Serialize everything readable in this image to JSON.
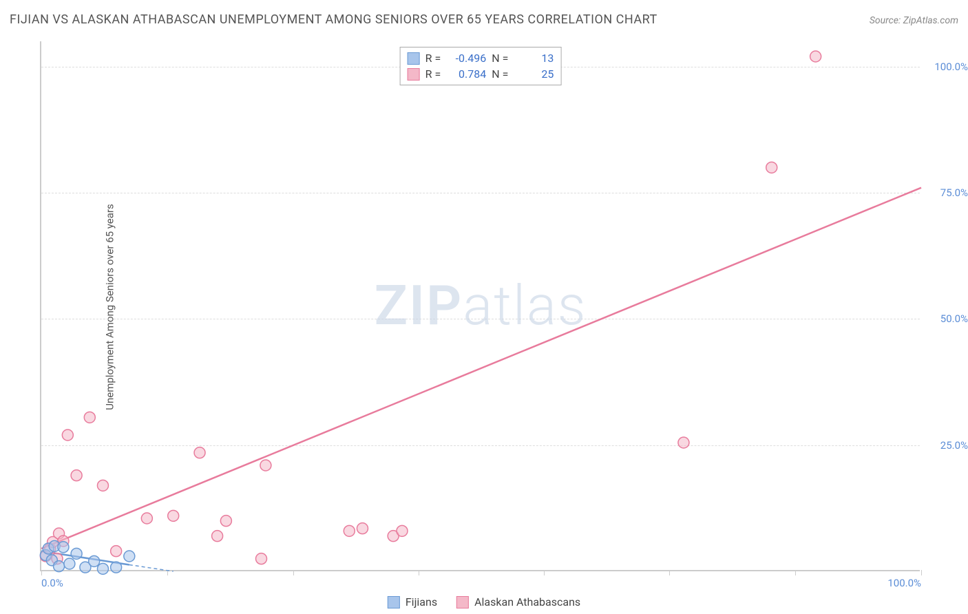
{
  "header": {
    "title": "FIJIAN VS ALASKAN ATHABASCAN UNEMPLOYMENT AMONG SENIORS OVER 65 YEARS CORRELATION CHART",
    "source": "Source: ZipAtlas.com"
  },
  "y_axis_label": "Unemployment Among Seniors over 65 years",
  "watermark": {
    "part1": "ZIP",
    "part2": "atlas"
  },
  "chart": {
    "type": "scatter",
    "xlim": [
      0,
      100
    ],
    "ylim": [
      0,
      105
    ],
    "y_ticks": [
      {
        "v": 25,
        "label": "25.0%"
      },
      {
        "v": 50,
        "label": "50.0%"
      },
      {
        "v": 75,
        "label": "75.0%"
      },
      {
        "v": 100,
        "label": "100.0%"
      }
    ],
    "x_ticks_major": [
      0,
      14.3,
      28.6,
      42.9,
      57.1,
      71.4,
      85.7,
      100
    ],
    "x_labels": [
      {
        "v": 0,
        "label": "0.0%"
      },
      {
        "v": 100,
        "label": "100.0%"
      }
    ],
    "grid_color": "#dddddd",
    "background_color": "#ffffff",
    "marker_radius": 8,
    "marker_stroke_width": 1.5,
    "series": {
      "fijians": {
        "label": "Fijians",
        "fill": "#a8c5eb",
        "fill_opacity": 0.55,
        "stroke": "#6a9ad4",
        "R": "-0.496",
        "N": "13",
        "trend": {
          "x1": 0,
          "y1": 4.0,
          "x2": 15,
          "y2": 0,
          "dash_ext_to_x": 15,
          "solid_to_x": 15
        },
        "points": [
          {
            "x": 0.5,
            "y": 3.2
          },
          {
            "x": 0.8,
            "y": 4.5
          },
          {
            "x": 1.2,
            "y": 2.2
          },
          {
            "x": 1.5,
            "y": 5.0
          },
          {
            "x": 2.0,
            "y": 1.0
          },
          {
            "x": 2.5,
            "y": 4.8
          },
          {
            "x": 3.2,
            "y": 1.5
          },
          {
            "x": 4.0,
            "y": 3.5
          },
          {
            "x": 5.0,
            "y": 0.8
          },
          {
            "x": 6.0,
            "y": 2.0
          },
          {
            "x": 7.0,
            "y": 0.5
          },
          {
            "x": 8.5,
            "y": 0.8
          },
          {
            "x": 10.0,
            "y": 3.0
          }
        ]
      },
      "athabascans": {
        "label": "Alaskan Athabascans",
        "fill": "#f4b8c8",
        "fill_opacity": 0.55,
        "stroke": "#e87b9c",
        "R": "0.784",
        "N": "25",
        "trend": {
          "x1": 0,
          "y1": 4.5,
          "x2": 100,
          "y2": 76
        },
        "points": [
          {
            "x": 0.5,
            "y": 3.0
          },
          {
            "x": 1.0,
            "y": 4.5
          },
          {
            "x": 1.3,
            "y": 5.8
          },
          {
            "x": 1.8,
            "y": 2.5
          },
          {
            "x": 2.0,
            "y": 7.5
          },
          {
            "x": 2.5,
            "y": 6.0
          },
          {
            "x": 3.0,
            "y": 27.0
          },
          {
            "x": 4.0,
            "y": 19.0
          },
          {
            "x": 5.5,
            "y": 30.5
          },
          {
            "x": 7.0,
            "y": 17.0
          },
          {
            "x": 8.5,
            "y": 4.0
          },
          {
            "x": 12.0,
            "y": 10.5
          },
          {
            "x": 15.0,
            "y": 11.0
          },
          {
            "x": 18.0,
            "y": 23.5
          },
          {
            "x": 20.0,
            "y": 7.0
          },
          {
            "x": 21.0,
            "y": 10.0
          },
          {
            "x": 25.0,
            "y": 2.5
          },
          {
            "x": 25.5,
            "y": 21.0
          },
          {
            "x": 35.0,
            "y": 8.0
          },
          {
            "x": 36.5,
            "y": 8.5
          },
          {
            "x": 40.0,
            "y": 7.0
          },
          {
            "x": 41.0,
            "y": 8.0
          },
          {
            "x": 73.0,
            "y": 25.5
          },
          {
            "x": 83.0,
            "y": 80.0
          },
          {
            "x": 88.0,
            "y": 102.0
          }
        ]
      }
    }
  },
  "stats_box": {
    "rows": [
      {
        "swatch_fill": "#a8c5eb",
        "swatch_stroke": "#6a9ad4",
        "r_label": "R =",
        "r_val": "-0.496",
        "n_label": "N =",
        "n_val": "13"
      },
      {
        "swatch_fill": "#f4b8c8",
        "swatch_stroke": "#e87b9c",
        "r_label": "R =",
        "r_val": "0.784",
        "n_label": "N =",
        "n_val": "25"
      }
    ]
  },
  "legend": {
    "items": [
      {
        "swatch_fill": "#a8c5eb",
        "swatch_stroke": "#6a9ad4",
        "label": "Fijians"
      },
      {
        "swatch_fill": "#f4b8c8",
        "swatch_stroke": "#e87b9c",
        "label": "Alaskan Athabascans"
      }
    ]
  }
}
